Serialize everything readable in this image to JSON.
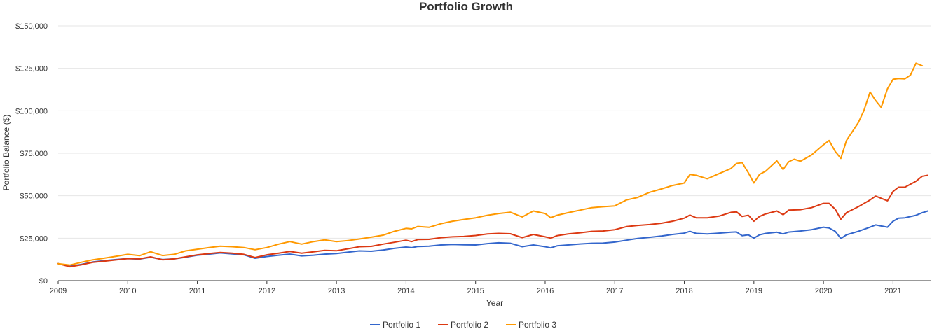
{
  "chart_data": {
    "type": "line",
    "title": "Portfolio Growth",
    "xlabel": "Year",
    "ylabel": "Portfolio Balance ($)",
    "xlim": [
      2009,
      2021.55
    ],
    "ylim": [
      0,
      150000
    ],
    "x_ticks": [
      2009,
      2010,
      2011,
      2012,
      2013,
      2014,
      2015,
      2016,
      2017,
      2018,
      2019,
      2020,
      2021
    ],
    "x_tick_labels": [
      "2009",
      "2010",
      "2011",
      "2012",
      "2013",
      "2014",
      "2015",
      "2016",
      "2017",
      "2018",
      "2019",
      "2020",
      "2021"
    ],
    "y_ticks": [
      0,
      25000,
      50000,
      75000,
      100000,
      125000,
      150000
    ],
    "y_tick_labels": [
      "$0",
      "$25,000",
      "$50,000",
      "$75,000",
      "$100,000",
      "$125,000",
      "$150,000"
    ],
    "grid": "horizontal",
    "legend_position": "bottom-center",
    "series": [
      {
        "name": "Portfolio 1",
        "color": "#3366cc",
        "points": [
          [
            2009.0,
            10000
          ],
          [
            2009.17,
            8500
          ],
          [
            2009.33,
            9500
          ],
          [
            2009.5,
            11000
          ],
          [
            2009.67,
            11800
          ],
          [
            2009.83,
            12400
          ],
          [
            2010.0,
            13000
          ],
          [
            2010.17,
            12700
          ],
          [
            2010.33,
            13800
          ],
          [
            2010.5,
            12400
          ],
          [
            2010.67,
            12800
          ],
          [
            2010.83,
            13800
          ],
          [
            2011.0,
            15000
          ],
          [
            2011.17,
            15600
          ],
          [
            2011.33,
            16300
          ],
          [
            2011.5,
            15800
          ],
          [
            2011.67,
            15200
          ],
          [
            2011.83,
            13200
          ],
          [
            2012.0,
            14200
          ],
          [
            2012.17,
            15000
          ],
          [
            2012.33,
            15600
          ],
          [
            2012.5,
            14600
          ],
          [
            2012.67,
            15000
          ],
          [
            2012.83,
            15600
          ],
          [
            2013.0,
            16000
          ],
          [
            2013.17,
            16800
          ],
          [
            2013.33,
            17500
          ],
          [
            2013.5,
            17300
          ],
          [
            2013.67,
            18000
          ],
          [
            2013.83,
            19000
          ],
          [
            2014.0,
            19800
          ],
          [
            2014.08,
            19400
          ],
          [
            2014.17,
            20100
          ],
          [
            2014.33,
            20300
          ],
          [
            2014.5,
            21000
          ],
          [
            2014.67,
            21300
          ],
          [
            2014.83,
            21100
          ],
          [
            2015.0,
            21000
          ],
          [
            2015.17,
            21800
          ],
          [
            2015.33,
            22300
          ],
          [
            2015.5,
            22000
          ],
          [
            2015.67,
            20000
          ],
          [
            2015.83,
            21000
          ],
          [
            2016.0,
            20000
          ],
          [
            2016.08,
            19300
          ],
          [
            2016.17,
            20500
          ],
          [
            2016.33,
            21000
          ],
          [
            2016.5,
            21600
          ],
          [
            2016.67,
            22000
          ],
          [
            2016.83,
            22100
          ],
          [
            2017.0,
            22700
          ],
          [
            2017.17,
            23800
          ],
          [
            2017.33,
            24800
          ],
          [
            2017.5,
            25500
          ],
          [
            2017.67,
            26300
          ],
          [
            2017.83,
            27200
          ],
          [
            2018.0,
            28000
          ],
          [
            2018.08,
            29000
          ],
          [
            2018.17,
            27800
          ],
          [
            2018.33,
            27500
          ],
          [
            2018.5,
            28000
          ],
          [
            2018.67,
            28500
          ],
          [
            2018.75,
            28700
          ],
          [
            2018.83,
            26500
          ],
          [
            2018.92,
            27000
          ],
          [
            2019.0,
            25000
          ],
          [
            2019.08,
            27000
          ],
          [
            2019.17,
            27800
          ],
          [
            2019.33,
            28500
          ],
          [
            2019.42,
            27500
          ],
          [
            2019.5,
            28600
          ],
          [
            2019.67,
            29200
          ],
          [
            2019.83,
            30000
          ],
          [
            2020.0,
            31500
          ],
          [
            2020.08,
            31000
          ],
          [
            2020.17,
            29000
          ],
          [
            2020.25,
            24800
          ],
          [
            2020.33,
            27000
          ],
          [
            2020.5,
            29000
          ],
          [
            2020.67,
            31500
          ],
          [
            2020.75,
            32800
          ],
          [
            2020.92,
            31500
          ],
          [
            2021.0,
            35000
          ],
          [
            2021.08,
            36800
          ],
          [
            2021.17,
            37000
          ],
          [
            2021.33,
            38500
          ],
          [
            2021.42,
            40000
          ],
          [
            2021.5,
            41000
          ]
        ]
      },
      {
        "name": "Portfolio 2",
        "color": "#dc3912",
        "points": [
          [
            2009.0,
            10000
          ],
          [
            2009.17,
            8200
          ],
          [
            2009.33,
            9300
          ],
          [
            2009.5,
            10800
          ],
          [
            2009.67,
            11500
          ],
          [
            2009.83,
            12200
          ],
          [
            2010.0,
            13000
          ],
          [
            2010.17,
            12800
          ],
          [
            2010.33,
            14000
          ],
          [
            2010.5,
            12300
          ],
          [
            2010.67,
            12800
          ],
          [
            2010.83,
            14000
          ],
          [
            2011.0,
            15200
          ],
          [
            2011.17,
            16000
          ],
          [
            2011.33,
            16600
          ],
          [
            2011.5,
            16200
          ],
          [
            2011.67,
            15500
          ],
          [
            2011.83,
            13600
          ],
          [
            2012.0,
            15200
          ],
          [
            2012.17,
            16200
          ],
          [
            2012.33,
            17200
          ],
          [
            2012.5,
            16200
          ],
          [
            2012.67,
            17000
          ],
          [
            2012.83,
            17800
          ],
          [
            2013.0,
            17600
          ],
          [
            2013.17,
            18800
          ],
          [
            2013.33,
            20000
          ],
          [
            2013.5,
            20200
          ],
          [
            2013.67,
            21500
          ],
          [
            2013.83,
            22600
          ],
          [
            2014.0,
            23800
          ],
          [
            2014.08,
            23000
          ],
          [
            2014.17,
            24200
          ],
          [
            2014.33,
            24300
          ],
          [
            2014.5,
            25300
          ],
          [
            2014.67,
            25800
          ],
          [
            2014.83,
            26000
          ],
          [
            2015.0,
            26600
          ],
          [
            2015.17,
            27500
          ],
          [
            2015.33,
            27800
          ],
          [
            2015.5,
            27600
          ],
          [
            2015.67,
            25300
          ],
          [
            2015.83,
            27200
          ],
          [
            2016.0,
            25800
          ],
          [
            2016.08,
            25000
          ],
          [
            2016.17,
            26500
          ],
          [
            2016.33,
            27500
          ],
          [
            2016.5,
            28200
          ],
          [
            2016.67,
            29000
          ],
          [
            2016.83,
            29200
          ],
          [
            2017.0,
            30000
          ],
          [
            2017.17,
            31800
          ],
          [
            2017.33,
            32500
          ],
          [
            2017.5,
            33000
          ],
          [
            2017.67,
            33800
          ],
          [
            2017.83,
            35000
          ],
          [
            2018.0,
            36800
          ],
          [
            2018.08,
            38600
          ],
          [
            2018.17,
            37000
          ],
          [
            2018.33,
            37000
          ],
          [
            2018.5,
            38000
          ],
          [
            2018.67,
            40200
          ],
          [
            2018.75,
            40500
          ],
          [
            2018.83,
            37800
          ],
          [
            2018.92,
            38500
          ],
          [
            2019.0,
            35000
          ],
          [
            2019.08,
            37800
          ],
          [
            2019.17,
            39300
          ],
          [
            2019.33,
            41000
          ],
          [
            2019.42,
            38800
          ],
          [
            2019.5,
            41500
          ],
          [
            2019.67,
            41800
          ],
          [
            2019.83,
            43000
          ],
          [
            2020.0,
            45500
          ],
          [
            2020.08,
            45500
          ],
          [
            2020.17,
            42000
          ],
          [
            2020.25,
            36200
          ],
          [
            2020.33,
            40000
          ],
          [
            2020.5,
            43500
          ],
          [
            2020.67,
            47500
          ],
          [
            2020.75,
            49800
          ],
          [
            2020.92,
            47000
          ],
          [
            2021.0,
            52500
          ],
          [
            2021.08,
            55000
          ],
          [
            2021.17,
            55000
          ],
          [
            2021.33,
            58500
          ],
          [
            2021.42,
            61500
          ],
          [
            2021.5,
            62000
          ]
        ]
      },
      {
        "name": "Portfolio 3",
        "color": "#ff9900",
        "points": [
          [
            2009.0,
            10000
          ],
          [
            2009.17,
            9200
          ],
          [
            2009.33,
            10800
          ],
          [
            2009.5,
            12300
          ],
          [
            2009.67,
            13300
          ],
          [
            2009.83,
            14300
          ],
          [
            2010.0,
            15500
          ],
          [
            2010.17,
            14700
          ],
          [
            2010.33,
            17000
          ],
          [
            2010.5,
            14800
          ],
          [
            2010.67,
            15500
          ],
          [
            2010.83,
            17500
          ],
          [
            2011.0,
            18500
          ],
          [
            2011.17,
            19500
          ],
          [
            2011.33,
            20300
          ],
          [
            2011.5,
            20000
          ],
          [
            2011.67,
            19500
          ],
          [
            2011.83,
            18200
          ],
          [
            2012.0,
            19500
          ],
          [
            2012.17,
            21500
          ],
          [
            2012.33,
            23000
          ],
          [
            2012.5,
            21500
          ],
          [
            2012.67,
            23000
          ],
          [
            2012.83,
            24000
          ],
          [
            2013.0,
            23000
          ],
          [
            2013.17,
            23600
          ],
          [
            2013.33,
            24500
          ],
          [
            2013.5,
            25600
          ],
          [
            2013.67,
            26800
          ],
          [
            2013.83,
            29000
          ],
          [
            2014.0,
            30800
          ],
          [
            2014.08,
            30500
          ],
          [
            2014.17,
            31900
          ],
          [
            2014.33,
            31400
          ],
          [
            2014.5,
            33500
          ],
          [
            2014.67,
            35000
          ],
          [
            2014.83,
            36000
          ],
          [
            2015.0,
            37000
          ],
          [
            2015.17,
            38500
          ],
          [
            2015.33,
            39500
          ],
          [
            2015.5,
            40300
          ],
          [
            2015.67,
            37500
          ],
          [
            2015.83,
            41000
          ],
          [
            2016.0,
            39500
          ],
          [
            2016.08,
            37000
          ],
          [
            2016.17,
            38500
          ],
          [
            2016.33,
            40000
          ],
          [
            2016.5,
            41500
          ],
          [
            2016.67,
            43000
          ],
          [
            2016.83,
            43500
          ],
          [
            2017.0,
            44000
          ],
          [
            2017.17,
            47500
          ],
          [
            2017.33,
            49000
          ],
          [
            2017.5,
            52000
          ],
          [
            2017.67,
            54000
          ],
          [
            2017.83,
            56000
          ],
          [
            2018.0,
            57500
          ],
          [
            2018.08,
            62500
          ],
          [
            2018.17,
            62000
          ],
          [
            2018.33,
            60000
          ],
          [
            2018.5,
            63000
          ],
          [
            2018.67,
            66000
          ],
          [
            2018.75,
            69000
          ],
          [
            2018.83,
            69500
          ],
          [
            2018.92,
            63500
          ],
          [
            2019.0,
            57500
          ],
          [
            2019.08,
            62500
          ],
          [
            2019.17,
            64500
          ],
          [
            2019.33,
            70500
          ],
          [
            2019.42,
            65500
          ],
          [
            2019.5,
            70000
          ],
          [
            2019.58,
            71500
          ],
          [
            2019.67,
            70300
          ],
          [
            2019.83,
            74000
          ],
          [
            2020.0,
            80000
          ],
          [
            2020.08,
            82500
          ],
          [
            2020.17,
            76000
          ],
          [
            2020.25,
            72000
          ],
          [
            2020.33,
            82500
          ],
          [
            2020.5,
            93000
          ],
          [
            2020.58,
            100000
          ],
          [
            2020.67,
            111000
          ],
          [
            2020.75,
            106000
          ],
          [
            2020.83,
            102000
          ],
          [
            2020.92,
            113000
          ],
          [
            2021.0,
            118500
          ],
          [
            2021.08,
            119000
          ],
          [
            2021.17,
            118800
          ],
          [
            2021.25,
            121000
          ],
          [
            2021.33,
            128000
          ],
          [
            2021.42,
            126500
          ]
        ]
      }
    ]
  }
}
